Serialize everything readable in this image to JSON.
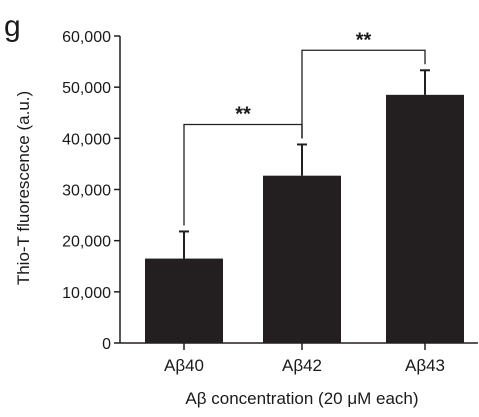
{
  "panel_label": "g",
  "chart_data": {
    "type": "bar",
    "title": "",
    "xlabel": "Aβ concentration (20 μM each)",
    "ylabel": "Thio-T fluorescence (a.u.)",
    "categories": [
      "Aβ40",
      "Aβ42",
      "Aβ43"
    ],
    "values": [
      16500,
      32700,
      48500
    ],
    "error_upper": [
      5300,
      6100,
      4800
    ],
    "ylim": [
      0,
      60000
    ],
    "yticks": [
      0,
      10000,
      20000,
      30000,
      40000,
      50000,
      60000
    ],
    "ytick_labels": [
      "0",
      "10,000",
      "20,000",
      "30,000",
      "40,000",
      "50,000",
      "60,000"
    ],
    "bar_color": "#231f20",
    "grid": false,
    "legend": "none",
    "significance": [
      {
        "from": 0,
        "to": 1,
        "label": "**"
      },
      {
        "from": 1,
        "to": 2,
        "label": "**"
      }
    ]
  }
}
